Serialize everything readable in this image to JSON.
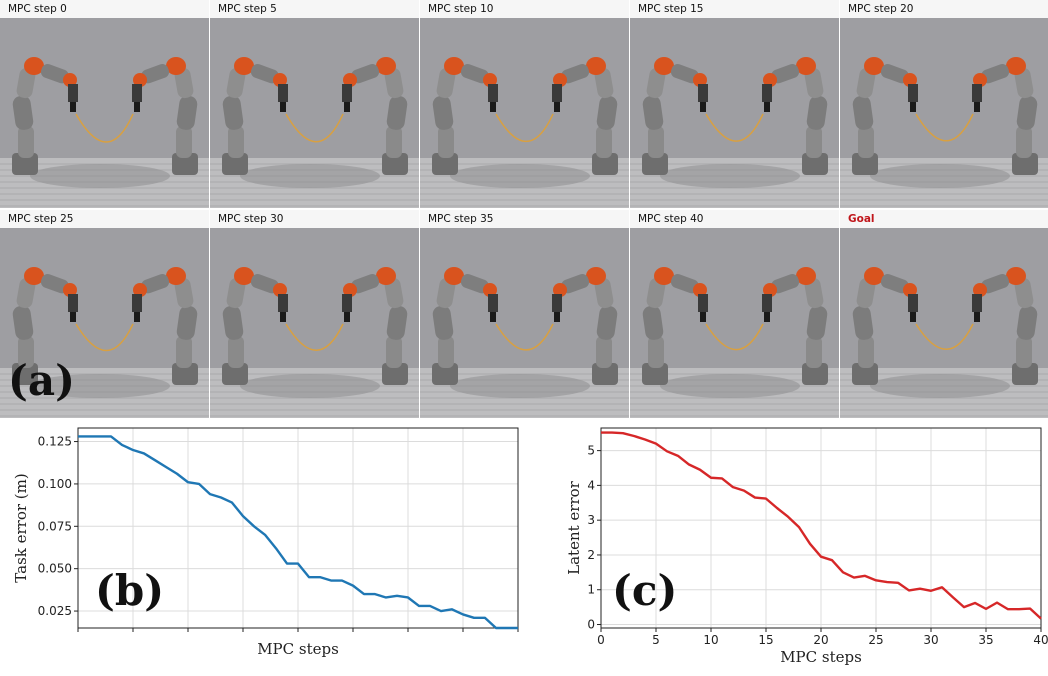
{
  "panels": {
    "a": {
      "label": "(a)",
      "frames": [
        {
          "title": "MPC step 0"
        },
        {
          "title": "MPC step 5"
        },
        {
          "title": "MPC step 10"
        },
        {
          "title": "MPC step 15"
        },
        {
          "title": "MPC step 20"
        },
        {
          "title": "MPC step 25"
        },
        {
          "title": "MPC step 30"
        },
        {
          "title": "MPC step 35"
        },
        {
          "title": "MPC step 40"
        },
        {
          "title": "Goal",
          "highlight_color": "#c0161b"
        }
      ]
    },
    "b": {
      "label": "(b)"
    },
    "c": {
      "label": "(c)"
    }
  },
  "chart_data": [
    {
      "type": "line",
      "id": "b",
      "xlabel": "MPC steps",
      "ylabel": "Task error (m)",
      "ylim": [
        0.015,
        0.133
      ],
      "xlim": [
        0,
        40
      ],
      "yticks": [
        0.025,
        0.05,
        0.075,
        0.1,
        0.125
      ],
      "ytick_labels": [
        "0.025",
        "0.050",
        "0.075",
        "0.100",
        "0.125"
      ],
      "xticks": [
        0,
        5,
        10,
        15,
        20,
        25,
        30,
        35,
        40
      ],
      "grid": true,
      "color": "#1f77b4",
      "series": [
        {
          "x": [
            0,
            1,
            2,
            3,
            4,
            5,
            6,
            7,
            8,
            9,
            10,
            11,
            12,
            13,
            14,
            15,
            16,
            17,
            18,
            19,
            20,
            21,
            22,
            23,
            24,
            25,
            26,
            27,
            28,
            29,
            30,
            31,
            32,
            33,
            34,
            35,
            36,
            37,
            38,
            39,
            40
          ],
          "values": [
            0.128,
            0.128,
            0.128,
            0.128,
            0.123,
            0.12,
            0.118,
            0.114,
            0.11,
            0.106,
            0.101,
            0.1,
            0.094,
            0.092,
            0.089,
            0.081,
            0.075,
            0.07,
            0.062,
            0.053,
            0.053,
            0.045,
            0.045,
            0.043,
            0.043,
            0.04,
            0.035,
            0.035,
            0.033,
            0.034,
            0.033,
            0.028,
            0.028,
            0.025,
            0.026,
            0.023,
            0.021,
            0.021,
            0.015,
            0.015,
            0.015
          ]
        }
      ]
    },
    {
      "type": "line",
      "id": "c",
      "xlabel": "MPC steps",
      "ylabel": "Latent error",
      "ylim": [
        -0.1,
        5.65
      ],
      "xlim": [
        0,
        40
      ],
      "yticks": [
        0,
        1,
        2,
        3,
        4,
        5
      ],
      "ytick_labels": [
        "0",
        "1",
        "2",
        "3",
        "4",
        "5"
      ],
      "xticks": [
        0,
        5,
        10,
        15,
        20,
        25,
        30,
        35,
        40
      ],
      "xtick_labels": [
        "0",
        "5",
        "10",
        "15",
        "20",
        "25",
        "30",
        "35",
        "40"
      ],
      "grid": true,
      "color": "#d62728",
      "series": [
        {
          "x": [
            0,
            1,
            2,
            3,
            4,
            5,
            6,
            7,
            8,
            9,
            10,
            11,
            12,
            13,
            14,
            15,
            16,
            17,
            18,
            19,
            20,
            21,
            22,
            23,
            24,
            25,
            26,
            27,
            28,
            29,
            30,
            31,
            32,
            33,
            34,
            35,
            36,
            37,
            38,
            39,
            40
          ],
          "values": [
            5.52,
            5.52,
            5.5,
            5.42,
            5.32,
            5.2,
            4.98,
            4.85,
            4.6,
            4.45,
            4.22,
            4.2,
            3.95,
            3.85,
            3.65,
            3.62,
            3.35,
            3.1,
            2.8,
            2.32,
            1.95,
            1.85,
            1.5,
            1.35,
            1.4,
            1.27,
            1.22,
            1.2,
            0.98,
            1.03,
            0.97,
            1.07,
            0.78,
            0.5,
            0.62,
            0.45,
            0.63,
            0.44,
            0.44,
            0.46,
            0.17
          ]
        }
      ]
    }
  ]
}
